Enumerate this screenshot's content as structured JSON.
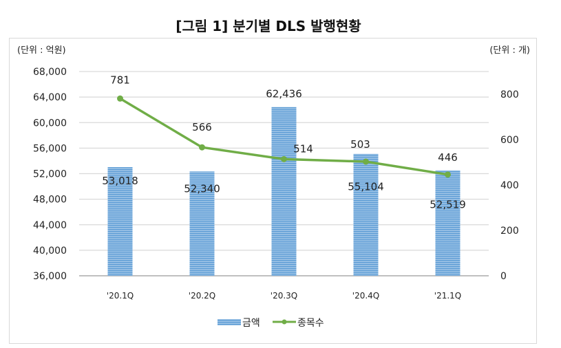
{
  "title": "[그림 1] 분기별 DLS 발행현황",
  "chart_data": {
    "type": "bar+line",
    "title": "[그림 1] 분기별 DLS 발행현황",
    "left_unit": "(단위 : 억원)",
    "right_unit": "(단위 : 개)",
    "categories": [
      "'20.1Q",
      "'20.2Q",
      "'20.3Q",
      "'20.4Q",
      "'21.1Q"
    ],
    "series": [
      {
        "name": "금액",
        "type": "bar",
        "axis": "left",
        "values": [
          53018,
          52340,
          62436,
          55104,
          52519
        ],
        "labels": [
          "53,018",
          "52,340",
          "62,436",
          "55,104",
          "52,519"
        ],
        "color": "#5b9bd5"
      },
      {
        "name": "종목수",
        "type": "line",
        "axis": "right",
        "values": [
          781,
          566,
          514,
          503,
          446
        ],
        "labels": [
          "781",
          "566",
          "514",
          "503",
          "446"
        ],
        "color": "#70ad47"
      }
    ],
    "left_axis": {
      "range": [
        36000,
        68000
      ],
      "ticks": [
        "36,000",
        "40,000",
        "44,000",
        "48,000",
        "52,000",
        "56,000",
        "60,000",
        "64,000",
        "68,000"
      ]
    },
    "right_axis": {
      "range": [
        0,
        900
      ],
      "ticks": [
        "0",
        "200",
        "400",
        "600",
        "800"
      ]
    },
    "grid": true,
    "legend": "bottom"
  }
}
